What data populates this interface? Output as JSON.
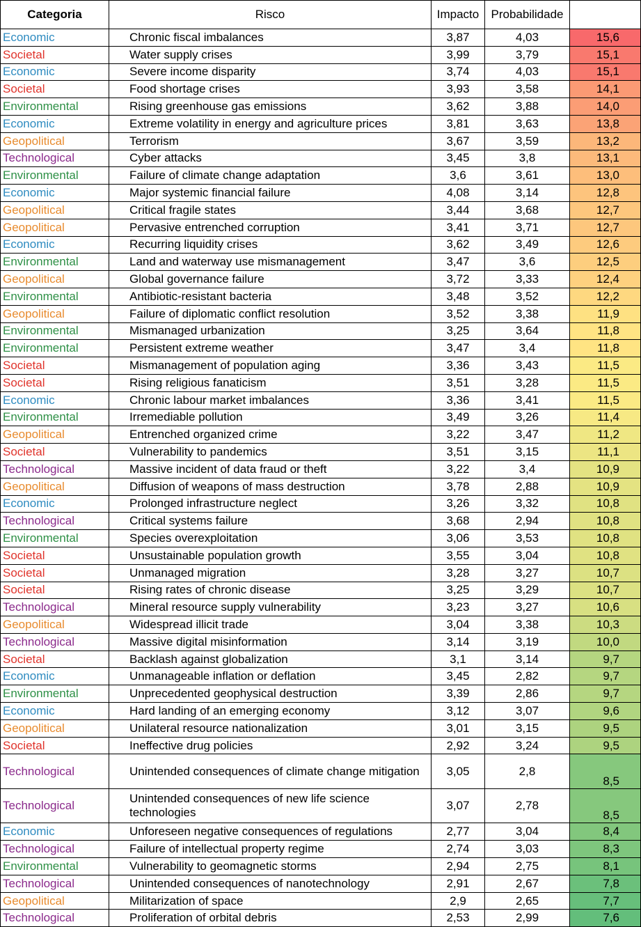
{
  "headers": {
    "category": "Categoria",
    "risk": "Risco",
    "impact": "Impacto",
    "probability": "Probabilidade",
    "score": ""
  },
  "category_colors": {
    "Economic": "#2e8bc0",
    "Societal": "#e0332b",
    "Environmental": "#2e9046",
    "Geopolitical": "#e88b2e",
    "Technological": "#8b2a8b"
  },
  "score_scale": {
    "min": 7.6,
    "max": 15.6
  },
  "rows": [
    {
      "category": "Economic",
      "risk": "Chronic fiscal imbalances",
      "impact": "3,87",
      "probability": "4,03",
      "score": "15,6"
    },
    {
      "category": "Societal",
      "risk": "Water supply crises",
      "impact": "3,99",
      "probability": "3,79",
      "score": "15,1"
    },
    {
      "category": "Economic",
      "risk": "Severe income disparity",
      "impact": "3,74",
      "probability": "4,03",
      "score": "15,1"
    },
    {
      "category": "Societal",
      "risk": "Food shortage crises",
      "impact": "3,93",
      "probability": "3,58",
      "score": "14,1"
    },
    {
      "category": "Environmental",
      "risk": "Rising greenhouse gas emissions",
      "impact": "3,62",
      "probability": "3,88",
      "score": "14,0"
    },
    {
      "category": "Economic",
      "risk": "Extreme volatility in energy and agriculture prices",
      "impact": "3,81",
      "probability": "3,63",
      "score": "13,8"
    },
    {
      "category": "Geopolitical",
      "risk": "Terrorism",
      "impact": "3,67",
      "probability": "3,59",
      "score": "13,2"
    },
    {
      "category": "Technological",
      "risk": "Cyber attacks",
      "impact": "3,45",
      "probability": "3,8",
      "score": "13,1"
    },
    {
      "category": "Environmental",
      "risk": "Failure of climate change adaptation",
      "impact": "3,6",
      "probability": "3,61",
      "score": "13,0"
    },
    {
      "category": "Economic",
      "risk": "Major systemic financial failure",
      "impact": "4,08",
      "probability": "3,14",
      "score": "12,8"
    },
    {
      "category": "Geopolitical",
      "risk": "Critical fragile states",
      "impact": "3,44",
      "probability": "3,68",
      "score": "12,7"
    },
    {
      "category": "Geopolitical",
      "risk": "Pervasive entrenched corruption",
      "impact": "3,41",
      "probability": "3,71",
      "score": "12,7"
    },
    {
      "category": "Economic",
      "risk": "Recurring liquidity crises",
      "impact": "3,62",
      "probability": "3,49",
      "score": "12,6"
    },
    {
      "category": "Environmental",
      "risk": "Land and waterway use mismanagement",
      "impact": "3,47",
      "probability": "3,6",
      "score": "12,5"
    },
    {
      "category": "Geopolitical",
      "risk": "Global governance failure",
      "impact": "3,72",
      "probability": "3,33",
      "score": "12,4"
    },
    {
      "category": "Environmental",
      "risk": "Antibiotic-resistant bacteria",
      "impact": "3,48",
      "probability": "3,52",
      "score": "12,2"
    },
    {
      "category": "Geopolitical",
      "risk": "Failure of diplomatic conflict resolution",
      "impact": "3,52",
      "probability": "3,38",
      "score": "11,9"
    },
    {
      "category": "Environmental",
      "risk": "Mismanaged urbanization",
      "impact": "3,25",
      "probability": "3,64",
      "score": "11,8"
    },
    {
      "category": "Environmental",
      "risk": "Persistent extreme weather",
      "impact": "3,47",
      "probability": "3,4",
      "score": "11,8"
    },
    {
      "category": "Societal",
      "risk": "Mismanagement of population aging",
      "impact": "3,36",
      "probability": "3,43",
      "score": "11,5"
    },
    {
      "category": "Societal",
      "risk": "Rising religious fanaticism",
      "impact": "3,51",
      "probability": "3,28",
      "score": "11,5"
    },
    {
      "category": "Economic",
      "risk": "Chronic labour market imbalances",
      "impact": "3,36",
      "probability": "3,41",
      "score": "11,5"
    },
    {
      "category": "Environmental",
      "risk": "Irremediable pollution",
      "impact": "3,49",
      "probability": "3,26",
      "score": "11,4"
    },
    {
      "category": "Geopolitical",
      "risk": "Entrenched organized crime",
      "impact": "3,22",
      "probability": "3,47",
      "score": "11,2"
    },
    {
      "category": "Societal",
      "risk": "Vulnerability to pandemics",
      "impact": "3,51",
      "probability": "3,15",
      "score": "11,1"
    },
    {
      "category": "Technological",
      "risk": "Massive incident of data fraud or theft",
      "impact": "3,22",
      "probability": "3,4",
      "score": "10,9"
    },
    {
      "category": "Geopolitical",
      "risk": "Diffusion of weapons of mass destruction",
      "impact": "3,78",
      "probability": "2,88",
      "score": "10,9"
    },
    {
      "category": "Economic",
      "risk": "Prolonged infrastructure neglect",
      "impact": "3,26",
      "probability": "3,32",
      "score": "10,8"
    },
    {
      "category": "Technological",
      "risk": "Critical systems failure",
      "impact": "3,68",
      "probability": "2,94",
      "score": "10,8"
    },
    {
      "category": "Environmental",
      "risk": "Species overexploitation",
      "impact": "3,06",
      "probability": "3,53",
      "score": "10,8"
    },
    {
      "category": "Societal",
      "risk": "Unsustainable population growth",
      "impact": "3,55",
      "probability": "3,04",
      "score": "10,8"
    },
    {
      "category": "Societal",
      "risk": "Unmanaged migration",
      "impact": "3,28",
      "probability": "3,27",
      "score": "10,7"
    },
    {
      "category": "Societal",
      "risk": "Rising rates of chronic disease",
      "impact": "3,25",
      "probability": "3,29",
      "score": "10,7"
    },
    {
      "category": "Technological",
      "risk": "Mineral resource supply vulnerability",
      "impact": "3,23",
      "probability": "3,27",
      "score": "10,6"
    },
    {
      "category": "Geopolitical",
      "risk": "Widespread illicit trade",
      "impact": "3,04",
      "probability": "3,38",
      "score": "10,3"
    },
    {
      "category": "Technological",
      "risk": "Massive digital misinformation",
      "impact": "3,14",
      "probability": "3,19",
      "score": "10,0"
    },
    {
      "category": "Societal",
      "risk": "Backlash against globalization",
      "impact": "3,1",
      "probability": "3,14",
      "score": "9,7"
    },
    {
      "category": "Economic",
      "risk": "Unmanageable inflation or deflation",
      "impact": "3,45",
      "probability": "2,82",
      "score": "9,7"
    },
    {
      "category": "Environmental",
      "risk": "Unprecedented geophysical destruction",
      "impact": "3,39",
      "probability": "2,86",
      "score": "9,7"
    },
    {
      "category": "Economic",
      "risk": "Hard landing of an emerging economy",
      "impact": "3,12",
      "probability": "3,07",
      "score": "9,6"
    },
    {
      "category": "Geopolitical",
      "risk": "Unilateral resource nationalization",
      "impact": "3,01",
      "probability": "3,15",
      "score": "9,5"
    },
    {
      "category": "Societal",
      "risk": "Ineffective drug policies",
      "impact": "2,92",
      "probability": "3,24",
      "score": "9,5"
    },
    {
      "category": "Technological",
      "risk": "Unintended consequences of climate change mitigation",
      "impact": "3,05",
      "probability": "2,8",
      "score": "8,5",
      "tall": true
    },
    {
      "category": "Technological",
      "risk": "Unintended consequences of new life science technologies",
      "impact": "3,07",
      "probability": "2,78",
      "score": "8,5",
      "tall": true
    },
    {
      "category": "Economic",
      "risk": "Unforeseen negative consequences of regulations",
      "impact": "2,77",
      "probability": "3,04",
      "score": "8,4"
    },
    {
      "category": "Technological",
      "risk": "Failure of intellectual property regime",
      "impact": "2,74",
      "probability": "3,03",
      "score": "8,3"
    },
    {
      "category": "Environmental",
      "risk": "Vulnerability to geomagnetic storms",
      "impact": "2,94",
      "probability": "2,75",
      "score": "8,1"
    },
    {
      "category": "Technological",
      "risk": "Unintended consequences of nanotechnology",
      "impact": "2,91",
      "probability": "2,67",
      "score": "7,8"
    },
    {
      "category": "Geopolitical",
      "risk": "Militarization of space",
      "impact": "2,9",
      "probability": "2,65",
      "score": "7,7"
    },
    {
      "category": "Technological",
      "risk": "Proliferation of orbital debris",
      "impact": "2,53",
      "probability": "2,99",
      "score": "7,6"
    }
  ]
}
